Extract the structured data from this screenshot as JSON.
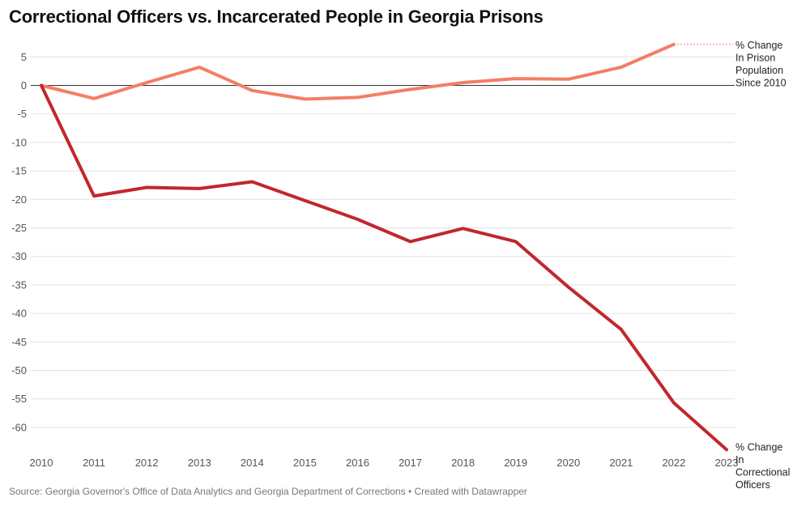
{
  "chart_data": {
    "type": "line",
    "title": "Correctional Officers vs. Incarcerated People in Georgia Prisons",
    "x": [
      2010,
      2011,
      2012,
      2013,
      2014,
      2015,
      2016,
      2017,
      2018,
      2019,
      2020,
      2021,
      2022,
      2023
    ],
    "x_tick_labels": [
      "2010",
      "2011",
      "2012",
      "2013",
      "2014",
      "2015",
      "2016",
      "2017",
      "2018",
      "2019",
      "2020",
      "2021",
      "2022",
      "2023"
    ],
    "y_ticks": [
      5,
      0,
      -5,
      -10,
      -15,
      -20,
      -25,
      -30,
      -35,
      -40,
      -45,
      -50,
      -55,
      -60
    ],
    "y_tick_labels": [
      "5",
      "0",
      "-5",
      "-10",
      "-15",
      "-20",
      "-25",
      "-30",
      "-35",
      "-40",
      "-45",
      "-50",
      "-55",
      "-60"
    ],
    "ylim": [
      -65,
      7.5
    ],
    "grid": true,
    "series": [
      {
        "name": "% Change In Prison Population Since 2010",
        "label_lines": [
          "% Change",
          "In Prison",
          "Population",
          "Since 2010"
        ],
        "color": "#f47e65",
        "x": [
          2010,
          2011,
          2012,
          2013,
          2014,
          2015,
          2016,
          2017,
          2018,
          2019,
          2020,
          2021,
          2022
        ],
        "values": [
          0,
          -2.3,
          0.5,
          3.2,
          -0.9,
          -2.4,
          -2.1,
          -0.7,
          0.5,
          1.2,
          1.1,
          3.2,
          7.2
        ]
      },
      {
        "name": "% Change In Correctional Officers",
        "label_lines": [
          "% Change",
          "In",
          "Correctional",
          "Officers"
        ],
        "color": "#c1272d",
        "x": [
          2010,
          2011,
          2012,
          2013,
          2014,
          2015,
          2016,
          2017,
          2018,
          2019,
          2020,
          2021,
          2022,
          2023
        ],
        "values": [
          0,
          -19.4,
          -17.9,
          -18.1,
          -16.9,
          -20.2,
          -23.5,
          -27.4,
          -25.1,
          -27.4,
          -35.4,
          -42.8,
          -55.7,
          -63.9
        ]
      }
    ]
  },
  "footer": {
    "source": "Source: Georgia Governor's Office of Data Analytics and Georgia Department of Corrections • Created with Datawrapper"
  }
}
